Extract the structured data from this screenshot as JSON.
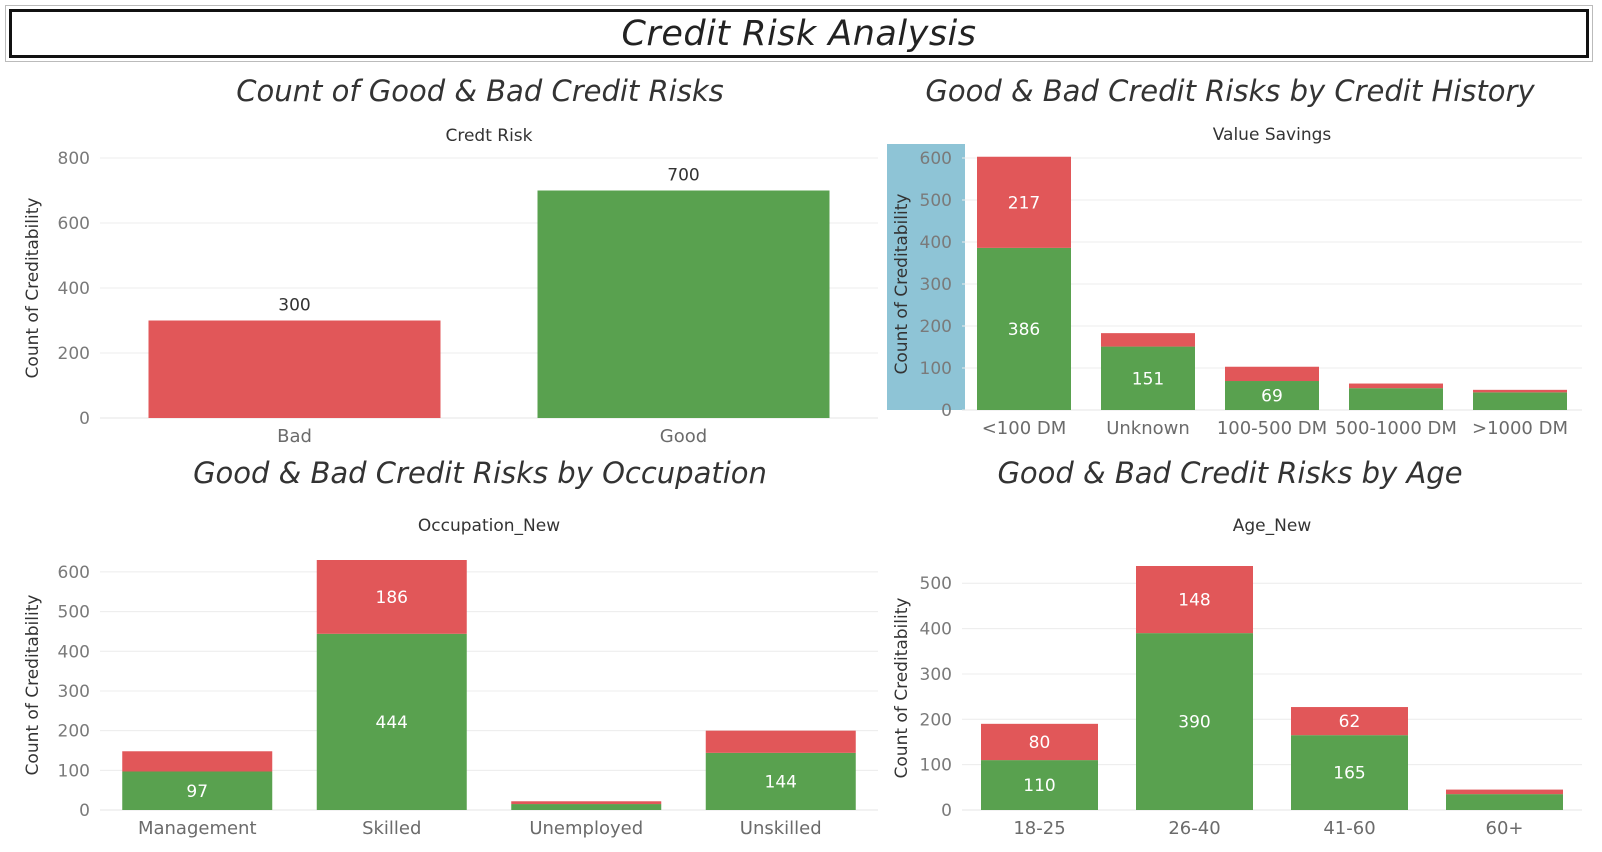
{
  "dashboard_title": "Credit Risk Analysis",
  "colors": {
    "good": "#59a14f",
    "bad": "#e15759",
    "highlight": "#8ec4d6"
  },
  "panels": [
    {
      "title": "Count of Good & Bad Credit Risks"
    },
    {
      "title": "Good & Bad Credit Risks by Credit History"
    },
    {
      "title": "Good & Bad Credit Risks by Occupation"
    },
    {
      "title": "Good & Bad Credit Risks by Age"
    }
  ],
  "chart_data": [
    {
      "type": "bar",
      "header": "Credt Risk",
      "ylabel": "Count of Creditability",
      "ylim": [
        0,
        800
      ],
      "yticks": [
        0,
        200,
        400,
        600,
        800
      ],
      "categories": [
        "Bad",
        "Good"
      ],
      "values": [
        300,
        700
      ],
      "data_labels": [
        "300",
        "700"
      ],
      "bar_colors": [
        "#e15759",
        "#59a14f"
      ],
      "grid": true
    },
    {
      "type": "bar",
      "stacked": true,
      "header": "Value Savings",
      "ylabel": "Count of Creditability",
      "ylim": [
        0,
        600
      ],
      "yticks": [
        0,
        100,
        200,
        300,
        400,
        500,
        600
      ],
      "categories": [
        "<100 DM",
        "Unknown",
        "100-500 DM",
        "500-1000 DM",
        ">1000 DM"
      ],
      "series": [
        {
          "color": "#59a14f",
          "values": [
            386,
            151,
            69,
            52,
            42
          ],
          "labels": [
            "386",
            "151",
            "69",
            "",
            ""
          ]
        },
        {
          "color": "#e15759",
          "values": [
            217,
            32,
            34,
            11,
            6
          ],
          "labels": [
            "217",
            "",
            "",
            "",
            ""
          ]
        }
      ],
      "axis_highlight": true,
      "grid": true
    },
    {
      "type": "bar",
      "stacked": true,
      "header": "Occupation_New",
      "ylabel": "Count of Creditability",
      "ylim": [
        0,
        630
      ],
      "yticks": [
        0,
        100,
        200,
        300,
        400,
        500,
        600
      ],
      "categories": [
        "Management",
        "Skilled",
        "Unemployed",
        "Unskilled"
      ],
      "series": [
        {
          "color": "#59a14f",
          "values": [
            97,
            444,
            15,
            144
          ],
          "labels": [
            "97",
            "444",
            "",
            "144"
          ]
        },
        {
          "color": "#e15759",
          "values": [
            51,
            186,
            7,
            56
          ],
          "labels": [
            "",
            "186",
            "",
            ""
          ]
        }
      ],
      "grid": true
    },
    {
      "type": "bar",
      "stacked": true,
      "header": "Age_New",
      "ylabel": "Count of Creditability",
      "ylim": [
        0,
        538
      ],
      "yticks": [
        0,
        100,
        200,
        300,
        400,
        500
      ],
      "categories": [
        "18-25",
        "26-40",
        "41-60",
        "60+"
      ],
      "series": [
        {
          "color": "#59a14f",
          "values": [
            110,
            390,
            165,
            35
          ],
          "labels": [
            "110",
            "390",
            "165",
            ""
          ]
        },
        {
          "color": "#e15759",
          "values": [
            80,
            148,
            62,
            10
          ],
          "labels": [
            "80",
            "148",
            "62",
            ""
          ]
        }
      ],
      "grid": true
    }
  ]
}
